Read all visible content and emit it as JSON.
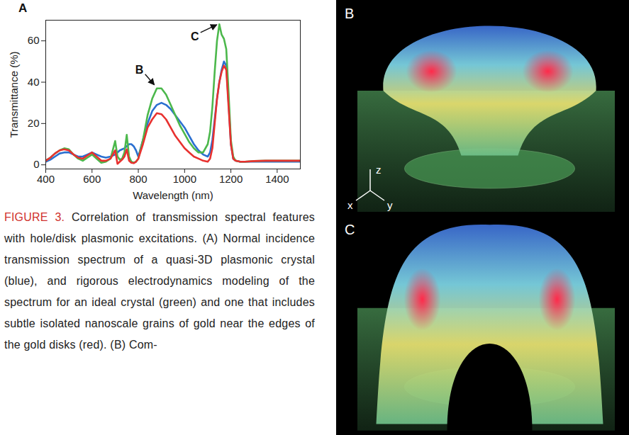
{
  "chart_data": {
    "type": "line",
    "label": "A",
    "xlabel": "Wavelength (nm)",
    "ylabel": "Transmittance (%)",
    "x": [
      400,
      420,
      440,
      460,
      480,
      500,
      520,
      540,
      560,
      580,
      600,
      620,
      640,
      660,
      680,
      700,
      710,
      720,
      730,
      740,
      750,
      760,
      770,
      780,
      790,
      800,
      820,
      840,
      860,
      880,
      900,
      920,
      940,
      960,
      980,
      1000,
      1020,
      1040,
      1060,
      1080,
      1100,
      1110,
      1120,
      1130,
      1140,
      1150,
      1160,
      1170,
      1180,
      1190,
      1200,
      1210,
      1220,
      1240,
      1260,
      1300,
      1350,
      1400,
      1450,
      1500
    ],
    "series": [
      {
        "color": "#2a6fd0",
        "values": [
          1.5,
          2.5,
          4,
          5.5,
          6,
          6,
          5,
          4,
          4,
          5,
          6,
          5,
          4,
          3.5,
          4,
          5,
          6,
          7,
          7.5,
          8,
          9,
          10,
          10,
          9,
          7,
          4,
          12,
          20,
          26,
          29,
          30,
          29,
          27,
          24,
          21,
          18,
          14,
          10,
          7,
          5,
          4,
          6,
          12,
          22,
          32,
          40,
          46,
          50,
          48,
          30,
          10,
          3,
          2,
          1.5,
          1.5,
          1.5,
          1.5,
          1.5,
          1.5,
          1.5
        ]
      },
      {
        "color": "#4cb84c",
        "values": [
          2,
          3.5,
          5.5,
          7,
          8,
          7.5,
          5,
          3,
          2,
          3.5,
          5,
          3,
          1,
          1.5,
          3,
          11.5,
          4,
          2.5,
          3,
          6,
          14.5,
          4,
          1.5,
          1,
          1.5,
          3,
          12,
          24,
          32,
          37,
          37,
          34,
          29,
          24,
          19,
          15,
          11,
          8,
          6,
          6,
          10,
          16,
          28,
          45,
          60,
          68,
          63,
          61,
          56,
          35,
          12,
          4,
          2,
          1.5,
          1.5,
          1.8,
          2,
          2,
          2,
          2
        ]
      },
      {
        "color": "#e8312f",
        "values": [
          2,
          3.5,
          5.5,
          7,
          7.5,
          7,
          5,
          3.5,
          3,
          4.5,
          6,
          4,
          2,
          2,
          3,
          7,
          0.5,
          1.5,
          2.5,
          4,
          7.5,
          2,
          1,
          0.8,
          1.5,
          3,
          10,
          18,
          22,
          25,
          24.5,
          22,
          18,
          14,
          11,
          8,
          6,
          4,
          3,
          2,
          1.5,
          3,
          8,
          20,
          32,
          40,
          45,
          48,
          46,
          28,
          10,
          3,
          2,
          1.5,
          1.5,
          1.8,
          2,
          2,
          2,
          2
        ]
      }
    ],
    "xlim": [
      400,
      1500
    ],
    "ylim": [
      -2,
      70
    ],
    "xticks": [
      400,
      600,
      800,
      1000,
      1200,
      1400
    ],
    "yticks": [
      0,
      20,
      40,
      60
    ],
    "grid": false,
    "annotations": [
      {
        "text": "B",
        "x": 880,
        "y": 37.5
      },
      {
        "text": "C",
        "x": 1150,
        "y": 68
      }
    ]
  },
  "caption": {
    "figure": "FIGURE 3.",
    "text": "Correlation of transmission spectral features with hole/disk plasmonic excitations. (A) Normal incidence transmission spectrum of a quasi-3D plasmonic crystal (blue), and rigorous electrodynamics modeling of the spectrum for an ideal crystal (green) and one that includes subtle isolated nanoscale grains of gold near the edges of the gold disks (red). (B) Com-"
  },
  "renderings": [
    {
      "label": "B",
      "axes": [
        "z",
        "x",
        "y"
      ]
    },
    {
      "label": "C"
    }
  ]
}
